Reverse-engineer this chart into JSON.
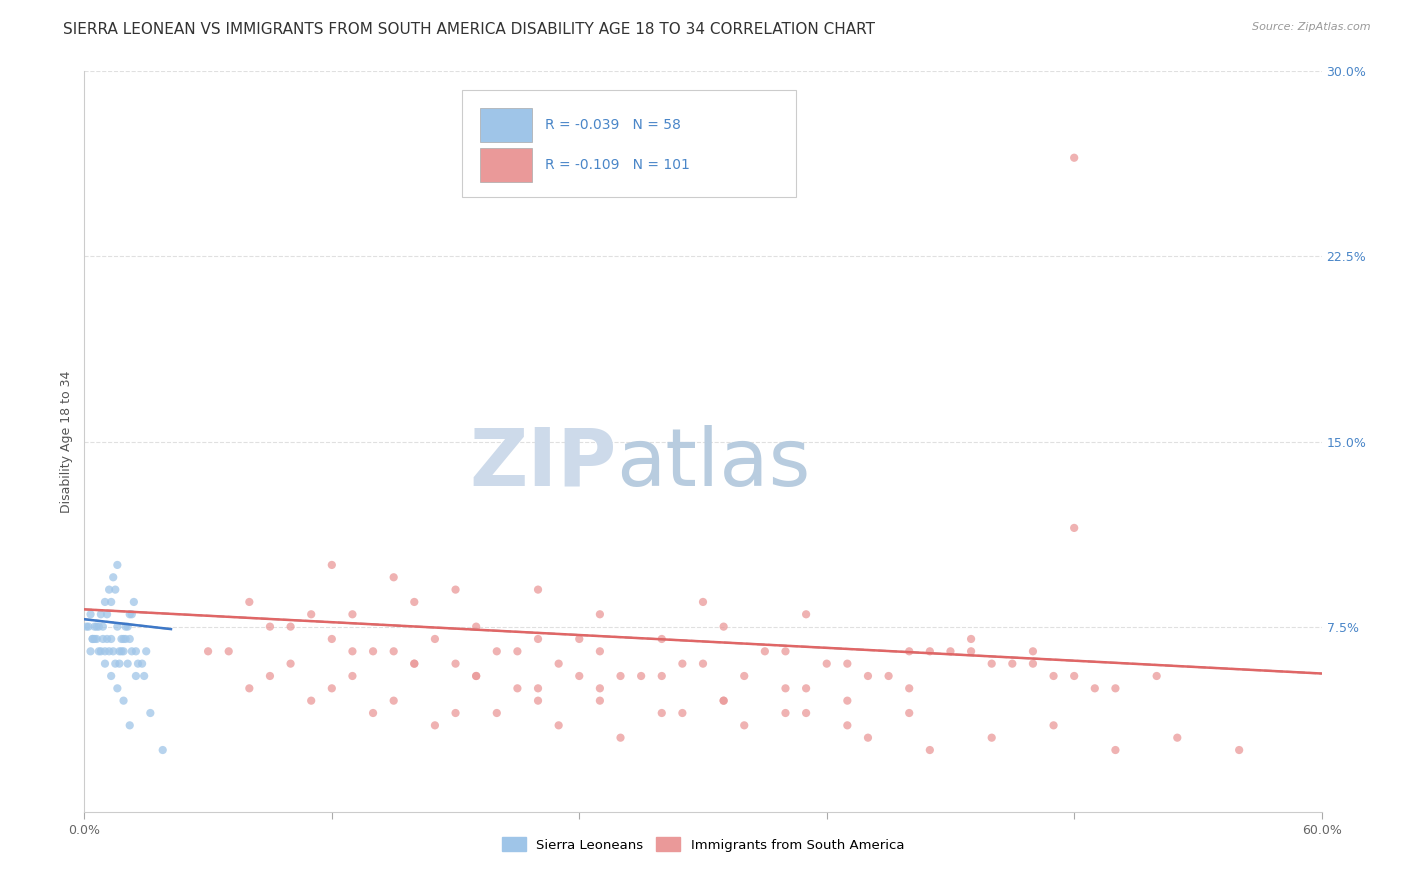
{
  "title": "SIERRA LEONEAN VS IMMIGRANTS FROM SOUTH AMERICA DISABILITY AGE 18 TO 34 CORRELATION CHART",
  "source": "Source: ZipAtlas.com",
  "ylabel": "Disability Age 18 to 34",
  "xlim": [
    0.0,
    0.6
  ],
  "ylim": [
    0.0,
    0.3
  ],
  "yticks_right": [
    0.075,
    0.15,
    0.225,
    0.3
  ],
  "ytick_right_labels": [
    "7.5%",
    "15.0%",
    "22.5%",
    "30.0%"
  ],
  "blue_color": "#9fc5e8",
  "pink_color": "#ea9999",
  "blue_line_color": "#3d78c8",
  "pink_line_color": "#e06666",
  "dashed_line_color": "#b0b0b0",
  "legend_blue_r": "-0.039",
  "legend_blue_n": "58",
  "legend_pink_r": "-0.109",
  "legend_pink_n": "101",
  "legend_text_color": "#4a86c8",
  "watermark_zip_color": "#c8d8ea",
  "watermark_atlas_color": "#b8cce0",
  "background_color": "#ffffff",
  "grid_color": "#e0e0e0",
  "title_fontsize": 11,
  "axis_label_fontsize": 9,
  "tick_fontsize": 9,
  "scatter_size": 35,
  "scatter_alpha": 0.75,
  "blue_scatter_x": [
    0.005,
    0.008,
    0.01,
    0.012,
    0.014,
    0.016,
    0.018,
    0.02,
    0.022,
    0.024,
    0.003,
    0.006,
    0.009,
    0.011,
    0.013,
    0.015,
    0.017,
    0.019,
    0.021,
    0.023,
    0.004,
    0.007,
    0.01,
    0.013,
    0.016,
    0.019,
    0.022,
    0.025,
    0.028,
    0.03,
    0.002,
    0.005,
    0.008,
    0.011,
    0.014,
    0.017,
    0.02,
    0.023,
    0.026,
    0.029,
    0.003,
    0.006,
    0.009,
    0.012,
    0.015,
    0.018,
    0.021,
    0.025,
    0.032,
    0.038,
    0.001,
    0.004,
    0.007,
    0.01,
    0.013,
    0.016,
    0.019,
    0.022
  ],
  "blue_scatter_y": [
    0.075,
    0.08,
    0.085,
    0.09,
    0.095,
    0.1,
    0.07,
    0.075,
    0.08,
    0.085,
    0.065,
    0.07,
    0.075,
    0.08,
    0.085,
    0.09,
    0.065,
    0.07,
    0.075,
    0.08,
    0.07,
    0.075,
    0.065,
    0.07,
    0.075,
    0.065,
    0.07,
    0.065,
    0.06,
    0.065,
    0.075,
    0.07,
    0.065,
    0.07,
    0.065,
    0.06,
    0.07,
    0.065,
    0.06,
    0.055,
    0.08,
    0.075,
    0.07,
    0.065,
    0.06,
    0.065,
    0.06,
    0.055,
    0.04,
    0.025,
    0.075,
    0.07,
    0.065,
    0.06,
    0.055,
    0.05,
    0.045,
    0.035
  ],
  "pink_scatter_x": [
    0.48,
    0.08,
    0.12,
    0.15,
    0.18,
    0.22,
    0.25,
    0.3,
    0.35,
    0.1,
    0.13,
    0.16,
    0.19,
    0.22,
    0.25,
    0.28,
    0.31,
    0.34,
    0.37,
    0.4,
    0.43,
    0.46,
    0.09,
    0.12,
    0.15,
    0.18,
    0.21,
    0.24,
    0.27,
    0.3,
    0.33,
    0.36,
    0.39,
    0.42,
    0.45,
    0.48,
    0.11,
    0.14,
    0.17,
    0.2,
    0.23,
    0.26,
    0.29,
    0.32,
    0.35,
    0.38,
    0.41,
    0.44,
    0.47,
    0.5,
    0.13,
    0.16,
    0.19,
    0.22,
    0.25,
    0.28,
    0.31,
    0.34,
    0.37,
    0.4,
    0.07,
    0.1,
    0.13,
    0.16,
    0.19,
    0.22,
    0.25,
    0.28,
    0.31,
    0.34,
    0.37,
    0.4,
    0.43,
    0.46,
    0.49,
    0.52,
    0.08,
    0.11,
    0.14,
    0.17,
    0.2,
    0.23,
    0.26,
    0.29,
    0.32,
    0.35,
    0.38,
    0.41,
    0.44,
    0.47,
    0.5,
    0.53,
    0.56,
    0.06,
    0.09,
    0.12,
    0.15,
    0.18,
    0.21,
    0.24,
    0.48
  ],
  "pink_scatter_y": [
    0.265,
    0.085,
    0.1,
    0.095,
    0.09,
    0.09,
    0.08,
    0.085,
    0.08,
    0.075,
    0.08,
    0.085,
    0.075,
    0.07,
    0.065,
    0.07,
    0.075,
    0.065,
    0.06,
    0.065,
    0.07,
    0.065,
    0.075,
    0.07,
    0.065,
    0.06,
    0.065,
    0.07,
    0.055,
    0.06,
    0.065,
    0.06,
    0.055,
    0.065,
    0.06,
    0.055,
    0.08,
    0.065,
    0.07,
    0.065,
    0.06,
    0.055,
    0.06,
    0.055,
    0.05,
    0.055,
    0.065,
    0.06,
    0.055,
    0.05,
    0.065,
    0.06,
    0.055,
    0.045,
    0.05,
    0.055,
    0.045,
    0.04,
    0.045,
    0.05,
    0.065,
    0.06,
    0.055,
    0.06,
    0.055,
    0.05,
    0.045,
    0.04,
    0.045,
    0.05,
    0.035,
    0.04,
    0.065,
    0.06,
    0.05,
    0.055,
    0.05,
    0.045,
    0.04,
    0.035,
    0.04,
    0.035,
    0.03,
    0.04,
    0.035,
    0.04,
    0.03,
    0.025,
    0.03,
    0.035,
    0.025,
    0.03,
    0.025,
    0.065,
    0.055,
    0.05,
    0.045,
    0.04,
    0.05,
    0.055,
    0.115
  ],
  "blue_trend_x": [
    0.0,
    0.042
  ],
  "blue_trend_y": [
    0.078,
    0.074
  ],
  "pink_trend_x": [
    0.0,
    0.6
  ],
  "pink_trend_y": [
    0.082,
    0.056
  ]
}
